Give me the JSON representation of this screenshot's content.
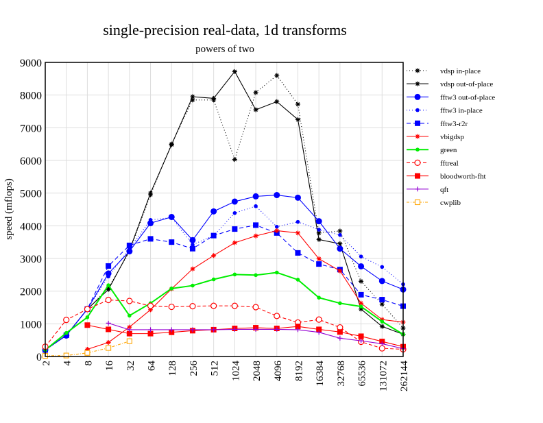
{
  "chart_data": {
    "type": "line",
    "title": "single-precision real-data, 1d transforms",
    "subtitle": "powers of two",
    "xlabel": "",
    "ylabel": "speed (mflops)",
    "ylim": [
      0,
      9000
    ],
    "yticks": [
      0,
      1000,
      2000,
      3000,
      4000,
      5000,
      6000,
      7000,
      8000,
      9000
    ],
    "grid": true,
    "legend_position": "right-outside-top",
    "categories": [
      "2",
      "4",
      "8",
      "16",
      "32",
      "64",
      "128",
      "256",
      "512",
      "1024",
      "2048",
      "4096",
      "8192",
      "16384",
      "32768",
      "65536",
      "131072",
      "262144"
    ],
    "series": [
      {
        "name": "vdsp in-place",
        "color": "#000000",
        "dash": "1,3",
        "marker": "star",
        "values": [
          200,
          650,
          1450,
          2100,
          3200,
          4950,
          6500,
          7850,
          7850,
          6030,
          8080,
          8600,
          7720,
          3780,
          3840,
          2300,
          1600,
          870
        ]
      },
      {
        "name": "vdsp out-of-place",
        "color": "#000000",
        "dash": "",
        "marker": "star",
        "values": [
          200,
          650,
          1450,
          2050,
          3250,
          5000,
          6480,
          7950,
          7900,
          8720,
          7550,
          7800,
          7250,
          3580,
          3450,
          1450,
          920,
          680
        ]
      },
      {
        "name": "fftw3 out-of-place",
        "color": "#0000ff",
        "dash": "",
        "marker": "bigdot",
        "values": [
          200,
          640,
          1450,
          2540,
          3220,
          4080,
          4270,
          3560,
          4440,
          4740,
          4900,
          4940,
          4860,
          4140,
          3300,
          2760,
          2310,
          2050
        ]
      },
      {
        "name": "fftw3 in-place",
        "color": "#0000ff",
        "dash": "1,3",
        "marker": "dot",
        "values": [
          200,
          650,
          1450,
          2450,
          3300,
          4180,
          4250,
          3420,
          3700,
          4390,
          4600,
          3970,
          4120,
          3880,
          3720,
          3060,
          2740,
          2210
        ]
      },
      {
        "name": "fftw3-r2r",
        "color": "#0000ff",
        "dash": "6,4",
        "marker": "square",
        "values": [
          200,
          650,
          1450,
          2770,
          3400,
          3600,
          3500,
          3300,
          3700,
          3900,
          4020,
          3780,
          3170,
          2830,
          2660,
          1890,
          1740,
          1540
        ]
      },
      {
        "name": "vbigdsp",
        "color": "#ff0000",
        "dash": "",
        "marker": "star",
        "values": [
          null,
          null,
          220,
          430,
          900,
          1430,
          2070,
          2680,
          3090,
          3480,
          3690,
          3850,
          3780,
          2990,
          2620,
          1630,
          1130,
          1050
        ]
      },
      {
        "name": "green",
        "color": "#00ee00",
        "dash": "",
        "marker": "dot",
        "width": 2,
        "values": [
          200,
          720,
          1200,
          2180,
          1250,
          1630,
          2080,
          2170,
          2360,
          2510,
          2490,
          2570,
          2350,
          1800,
          1630,
          1530,
          1070,
          680
        ]
      },
      {
        "name": "fftreal",
        "color": "#ff0000",
        "dash": "5,3",
        "marker": "circle",
        "values": [
          300,
          1120,
          1450,
          1730,
          1700,
          1550,
          1520,
          1540,
          1550,
          1550,
          1510,
          1240,
          1040,
          1130,
          890,
          450,
          250,
          220
        ]
      },
      {
        "name": "bloodworth-fht",
        "color": "#ff0000",
        "dash": "",
        "marker": "square",
        "values": [
          null,
          null,
          960,
          830,
          700,
          700,
          740,
          790,
          820,
          860,
          880,
          860,
          920,
          830,
          750,
          620,
          460,
          300
        ]
      },
      {
        "name": "qft",
        "color": "#9400d3",
        "dash": "",
        "marker": "plus",
        "values": [
          null,
          null,
          null,
          1020,
          820,
          820,
          820,
          820,
          820,
          830,
          830,
          830,
          820,
          740,
          560,
          480,
          390,
          240
        ]
      },
      {
        "name": "cwplib",
        "color": "#ffa500",
        "dash": "4,2,1,2",
        "marker": "opensquare",
        "values": [
          20,
          30,
          110,
          260,
          470,
          null,
          null,
          null,
          null,
          null,
          null,
          null,
          null,
          null,
          null,
          null,
          null,
          null
        ]
      }
    ]
  }
}
